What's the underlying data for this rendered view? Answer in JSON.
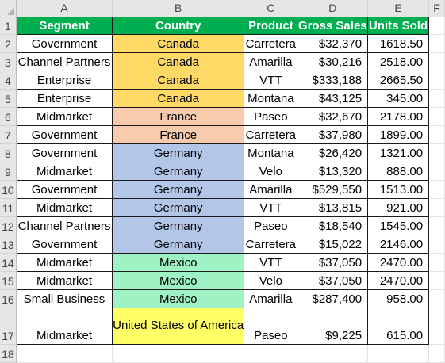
{
  "columns": [
    "A",
    "B",
    "C",
    "D",
    "E",
    "F"
  ],
  "header": [
    "Segment",
    "Country",
    "Product",
    "Gross Sales",
    "Units Sold"
  ],
  "rows": [
    {
      "n": "2",
      "segment": "Government",
      "country": "Canada",
      "product": "Carretera",
      "gross": "$32,370",
      "units": "1618.50"
    },
    {
      "n": "3",
      "segment": "Channel Partners",
      "country": "Canada",
      "product": "Amarilla",
      "gross": "$30,216",
      "units": "2518.00"
    },
    {
      "n": "4",
      "segment": "Enterprise",
      "country": "Canada",
      "product": "VTT",
      "gross": "$333,188",
      "units": "2665.50"
    },
    {
      "n": "5",
      "segment": "Enterprise",
      "country": "Canada",
      "product": "Montana",
      "gross": "$43,125",
      "units": "345.00"
    },
    {
      "n": "6",
      "segment": "Midmarket",
      "country": "France",
      "product": "Paseo",
      "gross": "$32,670",
      "units": "2178.00"
    },
    {
      "n": "7",
      "segment": "Government",
      "country": "France",
      "product": "Carretera",
      "gross": "$37,980",
      "units": "1899.00"
    },
    {
      "n": "8",
      "segment": "Government",
      "country": "Germany",
      "product": "Montana",
      "gross": "$26,420",
      "units": "1321.00"
    },
    {
      "n": "9",
      "segment": "Midmarket",
      "country": "Germany",
      "product": "Velo",
      "gross": "$13,320",
      "units": "888.00"
    },
    {
      "n": "10",
      "segment": "Government",
      "country": "Germany",
      "product": "Amarilla",
      "gross": "$529,550",
      "units": "1513.00"
    },
    {
      "n": "11",
      "segment": "Midmarket",
      "country": "Germany",
      "product": "VTT",
      "gross": "$13,815",
      "units": "921.00"
    },
    {
      "n": "12",
      "segment": "Channel Partners",
      "country": "Germany",
      "product": "Paseo",
      "gross": "$18,540",
      "units": "1545.00"
    },
    {
      "n": "13",
      "segment": "Government",
      "country": "Germany",
      "product": "Carretera",
      "gross": "$15,022",
      "units": "2146.00"
    },
    {
      "n": "14",
      "segment": "Midmarket",
      "country": "Mexico",
      "product": "VTT",
      "gross": "$37,050",
      "units": "2470.00"
    },
    {
      "n": "15",
      "segment": "Midmarket",
      "country": "Mexico",
      "product": "Velo",
      "gross": "$37,050",
      "units": "2470.00"
    },
    {
      "n": "16",
      "segment": "Small Business",
      "country": "Mexico",
      "product": "Amarilla",
      "gross": "$287,400",
      "units": "958.00"
    },
    {
      "n": "17",
      "segment": "Midmarket",
      "country": "United States of America",
      "product": "Paseo",
      "gross": "$9,225",
      "units": "615.00"
    }
  ],
  "row_numbers": [
    "1",
    "18"
  ],
  "country_colors": {
    "Canada": "#ffd966",
    "France": "#f8cbad",
    "Germany": "#b4c6e7",
    "Mexico": "#9ff2c3",
    "United States of America": "#ffff66"
  },
  "header_color": "#00b050"
}
